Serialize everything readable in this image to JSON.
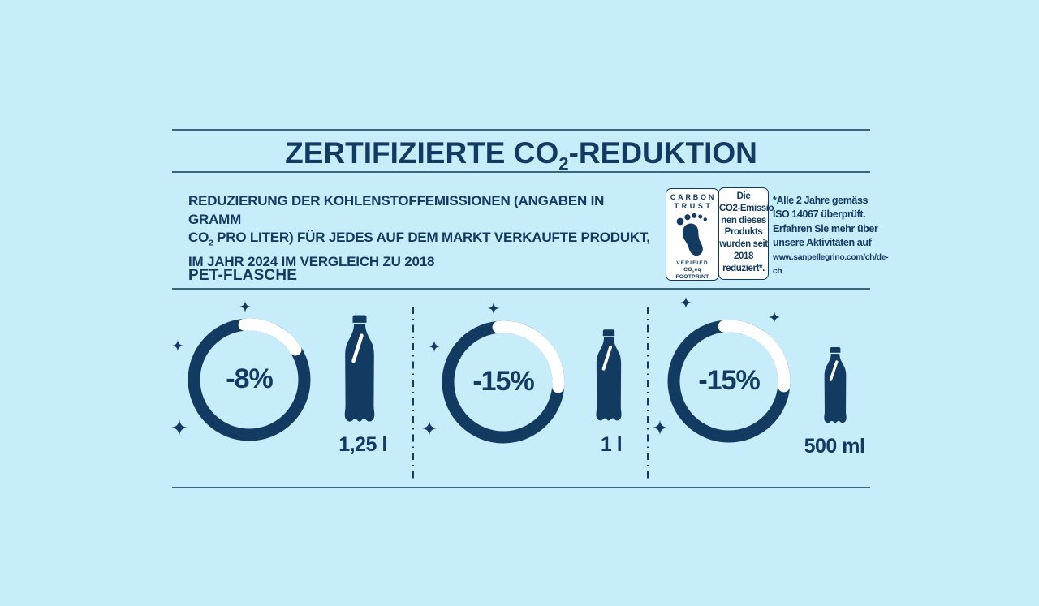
{
  "colors": {
    "background": "#c7edfb",
    "ink": "#133a60",
    "rule": "#3a657e",
    "white": "#ffffff"
  },
  "title": {
    "pre": "ZERTIFIZIERTE CO",
    "sub": "2",
    "post": "-REDUKTION"
  },
  "intro": {
    "line1": "REDUZIERUNG DER KOHLENSTOFFEMISSIONEN (ANGABEN IN GRAMM",
    "line2_pre": "CO",
    "line2_sub": "2",
    "line2_post": " PRO LITER) FÜR JEDES AUF DEM MARKT VERKAUFTE PRODUKT,",
    "line3": "IM JAHR 2024 IM VERGLEICH ZU 2018"
  },
  "carbon_trust_badge": {
    "name_line1": "CARBON",
    "name_line2": "TRUST",
    "verified": "VERIFIED",
    "footprint_pre": "CO",
    "footprint_sub": "2",
    "footprint_post": "eq FOOTPRINT"
  },
  "claim_box": {
    "lines": [
      "Die",
      "CO2-Emissio",
      "nen dieses",
      "Produkts",
      "wurden seit",
      "2018",
      "reduziert*."
    ]
  },
  "side_note": {
    "line1": "*Alle 2 Jahre gemäss",
    "line2": "ISO 14067 überprüft.",
    "line3": "Erfahren Sie mehr über",
    "line4": "unsere Aktivitäten auf",
    "link": "www.sanpellegrino.com/ch/de-ch"
  },
  "section": {
    "label": "PET-FLASCHE"
  },
  "gauges": [
    {
      "percent_label": "-8%",
      "bottle_label": "1,25 l",
      "arc_start_deg": -95,
      "arc_end_deg": -33
    },
    {
      "percent_label": "-15%",
      "bottle_label": "1 l",
      "arc_start_deg": -95,
      "arc_end_deg": 5
    },
    {
      "percent_label": "-15%",
      "bottle_label": "500 ml",
      "arc_start_deg": -95,
      "arc_end_deg": 5
    }
  ],
  "chart_data": {
    "type": "pie",
    "variant": "donut_gauges",
    "title": "ZERTIFIZIERTE CO2-REDUKTION",
    "subtitle": "REDUZIERUNG DER KOHLENSTOFFEMISSIONEN (ANGABEN IN GRAMM CO2 PRO LITER) FÜR JEDES AUF DEM MARKT VERKAUFTE PRODUKT, IM JAHR 2024 IM VERGLEICH ZU 2018",
    "group_label": "PET-FLASCHE",
    "categories": [
      "1,25 l",
      "1 l",
      "500 ml"
    ],
    "values_percent_change": [
      -8,
      -15,
      -15
    ],
    "value_labels": [
      "-8%",
      "-15%",
      "-15%"
    ],
    "legend": "none",
    "notes": "Each bottle size shown with a donut gauge; white arc marks the reduced share."
  }
}
